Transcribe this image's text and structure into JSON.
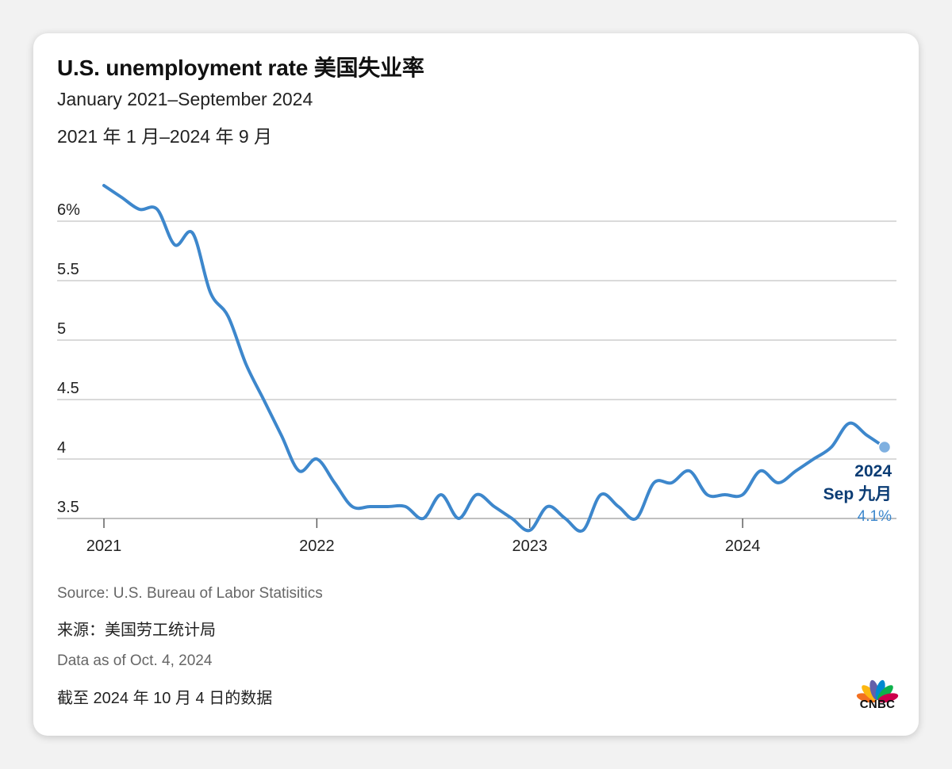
{
  "header": {
    "title": "U.S. unemployment rate 美国失业率",
    "subtitle_en": "January 2021–September 2024",
    "subtitle_zh": "2021 年 1 月–2024 年 9 月"
  },
  "colors": {
    "line": "#3d87cc",
    "callout": "#0b3c74",
    "grid": "#c4c4c4",
    "axis": "#666666"
  },
  "chart_data": {
    "type": "line",
    "title": "U.S. unemployment rate 美国失业率",
    "xlabel": "",
    "ylabel": "",
    "ylim": [
      3.4,
      6.4
    ],
    "grid": true,
    "legend": "none",
    "y_ticks": [
      3.5,
      4,
      4.5,
      5,
      5.5,
      6
    ],
    "y_tick_labels": [
      "3.5",
      "4",
      "4.5",
      "5",
      "5.5",
      "6%"
    ],
    "x_ticks": [
      "2021",
      "2022",
      "2023",
      "2024"
    ],
    "series": [
      {
        "x": [
          "2021-01",
          "2021-02",
          "2021-03",
          "2021-04",
          "2021-05",
          "2021-06",
          "2021-07",
          "2021-08",
          "2021-09",
          "2021-10",
          "2021-11",
          "2021-12",
          "2022-01",
          "2022-02",
          "2022-03",
          "2022-04",
          "2022-05",
          "2022-06",
          "2022-07",
          "2022-08",
          "2022-09",
          "2022-10",
          "2022-11",
          "2022-12",
          "2023-01",
          "2023-02",
          "2023-03",
          "2023-04",
          "2023-05",
          "2023-06",
          "2023-07",
          "2023-08",
          "2023-09",
          "2023-10",
          "2023-11",
          "2023-12",
          "2024-01",
          "2024-02",
          "2024-03",
          "2024-04",
          "2024-05",
          "2024-06",
          "2024-07",
          "2024-08",
          "2024-09"
        ],
        "values": [
          6.3,
          6.2,
          6.1,
          6.1,
          5.8,
          5.9,
          5.4,
          5.2,
          4.8,
          4.5,
          4.2,
          3.9,
          4.0,
          3.8,
          3.6,
          3.6,
          3.6,
          3.6,
          3.5,
          3.7,
          3.5,
          3.7,
          3.6,
          3.5,
          3.4,
          3.6,
          3.5,
          3.4,
          3.7,
          3.6,
          3.5,
          3.8,
          3.8,
          3.9,
          3.7,
          3.7,
          3.7,
          3.9,
          3.8,
          3.9,
          4.0,
          4.1,
          4.3,
          4.2,
          4.1
        ]
      }
    ],
    "annotation": {
      "year": "2024",
      "month_label": "Sep 九月",
      "value_label": "4.1%"
    }
  },
  "footer": {
    "source_en": "Source: U.S. Bureau of Labor Statisitics",
    "source_zh": "来源：美国劳工统计局",
    "date_en": "Data as of Oct. 4, 2024",
    "date_zh": "截至 2024 年 10 月 4 日的数据"
  },
  "logo": {
    "text": "CNBC",
    "icon": "peacock-icon",
    "feather_colors": [
      "#f37021",
      "#fcb711",
      "#6460aa",
      "#0089d0",
      "#0db14b",
      "#cc004c"
    ]
  }
}
